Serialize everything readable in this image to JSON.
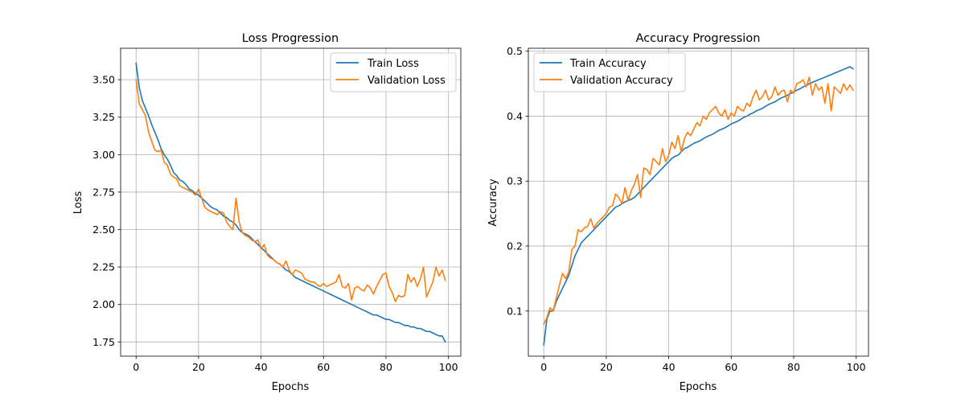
{
  "colors": {
    "train": "#1f77b4",
    "validation": "#ff7f0e",
    "grid": "#b0b0b0",
    "axis": "#000000"
  },
  "chart_data": [
    {
      "type": "line",
      "title": "Loss Progression",
      "xlabel": "Epochs",
      "ylabel": "Loss",
      "xlim": [
        -4.95,
        103.95
      ],
      "ylim": [
        1.655,
        3.71
      ],
      "xticks": [
        0,
        20,
        40,
        60,
        80,
        100
      ],
      "xtick_labels": [
        "0",
        "20",
        "40",
        "60",
        "80",
        "100"
      ],
      "yticks": [
        1.75,
        2.0,
        2.25,
        2.5,
        2.75,
        3.0,
        3.25,
        3.5
      ],
      "ytick_labels": [
        "1.75",
        "2.00",
        "2.25",
        "2.50",
        "2.75",
        "3.00",
        "3.25",
        "3.50"
      ],
      "grid": true,
      "legend": "upper right",
      "series": [
        {
          "name": "Train Loss",
          "color_key": "train",
          "values": [
            3.61,
            3.45,
            3.36,
            3.31,
            3.26,
            3.2,
            3.15,
            3.1,
            3.04,
            3.0,
            2.97,
            2.93,
            2.88,
            2.86,
            2.83,
            2.82,
            2.8,
            2.77,
            2.76,
            2.74,
            2.73,
            2.71,
            2.69,
            2.67,
            2.65,
            2.64,
            2.63,
            2.61,
            2.59,
            2.58,
            2.56,
            2.55,
            2.53,
            2.5,
            2.48,
            2.47,
            2.46,
            2.44,
            2.42,
            2.4,
            2.38,
            2.36,
            2.34,
            2.32,
            2.3,
            2.28,
            2.27,
            2.25,
            2.23,
            2.22,
            2.2,
            2.18,
            2.17,
            2.16,
            2.15,
            2.14,
            2.13,
            2.12,
            2.11,
            2.1,
            2.09,
            2.08,
            2.07,
            2.06,
            2.05,
            2.04,
            2.03,
            2.02,
            2.01,
            2.0,
            1.99,
            1.98,
            1.97,
            1.96,
            1.95,
            1.94,
            1.93,
            1.93,
            1.92,
            1.91,
            1.9,
            1.9,
            1.89,
            1.88,
            1.88,
            1.87,
            1.86,
            1.86,
            1.85,
            1.85,
            1.84,
            1.84,
            1.83,
            1.82,
            1.82,
            1.81,
            1.8,
            1.79,
            1.79,
            1.75
          ]
        },
        {
          "name": "Validation Loss",
          "color_key": "validation",
          "values": [
            3.5,
            3.34,
            3.3,
            3.26,
            3.15,
            3.09,
            3.03,
            3.02,
            3.03,
            2.95,
            2.93,
            2.87,
            2.85,
            2.84,
            2.79,
            2.78,
            2.77,
            2.76,
            2.75,
            2.73,
            2.77,
            2.71,
            2.65,
            2.63,
            2.62,
            2.61,
            2.6,
            2.62,
            2.61,
            2.55,
            2.52,
            2.5,
            2.71,
            2.55,
            2.48,
            2.46,
            2.45,
            2.43,
            2.42,
            2.43,
            2.37,
            2.4,
            2.33,
            2.31,
            2.3,
            2.28,
            2.27,
            2.25,
            2.29,
            2.23,
            2.2,
            2.23,
            2.22,
            2.21,
            2.17,
            2.16,
            2.15,
            2.15,
            2.13,
            2.12,
            2.14,
            2.12,
            2.13,
            2.14,
            2.15,
            2.2,
            2.12,
            2.11,
            2.14,
            2.03,
            2.11,
            2.12,
            2.1,
            2.09,
            2.13,
            2.11,
            2.07,
            2.12,
            2.16,
            2.2,
            2.21,
            2.12,
            2.08,
            2.02,
            2.06,
            2.05,
            2.06,
            2.2,
            2.15,
            2.18,
            2.12,
            2.17,
            2.25,
            2.05,
            2.1,
            2.15,
            2.25,
            2.19,
            2.23,
            2.16
          ]
        }
      ]
    },
    {
      "type": "line",
      "title": "Accuracy Progression",
      "xlabel": "Epochs",
      "ylabel": "Accuracy",
      "xlim": [
        -4.95,
        103.95
      ],
      "ylim": [
        0.0305,
        0.5045
      ],
      "xticks": [
        0,
        20,
        40,
        60,
        80,
        100
      ],
      "xtick_labels": [
        "0",
        "20",
        "40",
        "60",
        "80",
        "100"
      ],
      "yticks": [
        0.1,
        0.2,
        0.3,
        0.4,
        0.5
      ],
      "ytick_labels": [
        "0.1",
        "0.2",
        "0.3",
        "0.4",
        "0.5"
      ],
      "grid": true,
      "legend": "upper left",
      "series": [
        {
          "name": "Train Accuracy",
          "color_key": "train",
          "values": [
            0.048,
            0.088,
            0.1,
            0.1,
            0.115,
            0.125,
            0.135,
            0.145,
            0.155,
            0.17,
            0.185,
            0.195,
            0.205,
            0.21,
            0.215,
            0.22,
            0.225,
            0.23,
            0.235,
            0.24,
            0.245,
            0.25,
            0.255,
            0.26,
            0.262,
            0.265,
            0.268,
            0.27,
            0.272,
            0.275,
            0.28,
            0.285,
            0.29,
            0.295,
            0.3,
            0.305,
            0.31,
            0.315,
            0.32,
            0.325,
            0.33,
            0.335,
            0.338,
            0.34,
            0.345,
            0.35,
            0.352,
            0.355,
            0.358,
            0.36,
            0.362,
            0.365,
            0.368,
            0.37,
            0.372,
            0.375,
            0.378,
            0.38,
            0.382,
            0.385,
            0.388,
            0.39,
            0.392,
            0.395,
            0.398,
            0.4,
            0.403,
            0.405,
            0.408,
            0.41,
            0.412,
            0.415,
            0.418,
            0.42,
            0.422,
            0.425,
            0.428,
            0.43,
            0.432,
            0.435,
            0.437,
            0.44,
            0.442,
            0.445,
            0.447,
            0.45,
            0.452,
            0.454,
            0.456,
            0.458,
            0.46,
            0.462,
            0.464,
            0.466,
            0.468,
            0.47,
            0.472,
            0.474,
            0.476,
            0.473
          ]
        },
        {
          "name": "Validation Accuracy",
          "color_key": "validation",
          "values": [
            0.08,
            0.09,
            0.105,
            0.1,
            0.12,
            0.14,
            0.158,
            0.15,
            0.16,
            0.195,
            0.2,
            0.225,
            0.222,
            0.228,
            0.23,
            0.242,
            0.228,
            0.235,
            0.24,
            0.245,
            0.25,
            0.26,
            0.262,
            0.28,
            0.275,
            0.265,
            0.29,
            0.27,
            0.285,
            0.295,
            0.31,
            0.275,
            0.32,
            0.318,
            0.31,
            0.335,
            0.33,
            0.325,
            0.35,
            0.33,
            0.34,
            0.36,
            0.35,
            0.37,
            0.345,
            0.365,
            0.375,
            0.37,
            0.38,
            0.39,
            0.385,
            0.4,
            0.395,
            0.405,
            0.41,
            0.415,
            0.405,
            0.4,
            0.41,
            0.395,
            0.405,
            0.4,
            0.415,
            0.41,
            0.408,
            0.42,
            0.415,
            0.43,
            0.44,
            0.425,
            0.43,
            0.44,
            0.425,
            0.43,
            0.445,
            0.432,
            0.438,
            0.44,
            0.422,
            0.44,
            0.435,
            0.45,
            0.452,
            0.456,
            0.445,
            0.46,
            0.432,
            0.45,
            0.44,
            0.445,
            0.42,
            0.45,
            0.408,
            0.445,
            0.44,
            0.435,
            0.45,
            0.44,
            0.448,
            0.44
          ]
        }
      ]
    }
  ]
}
